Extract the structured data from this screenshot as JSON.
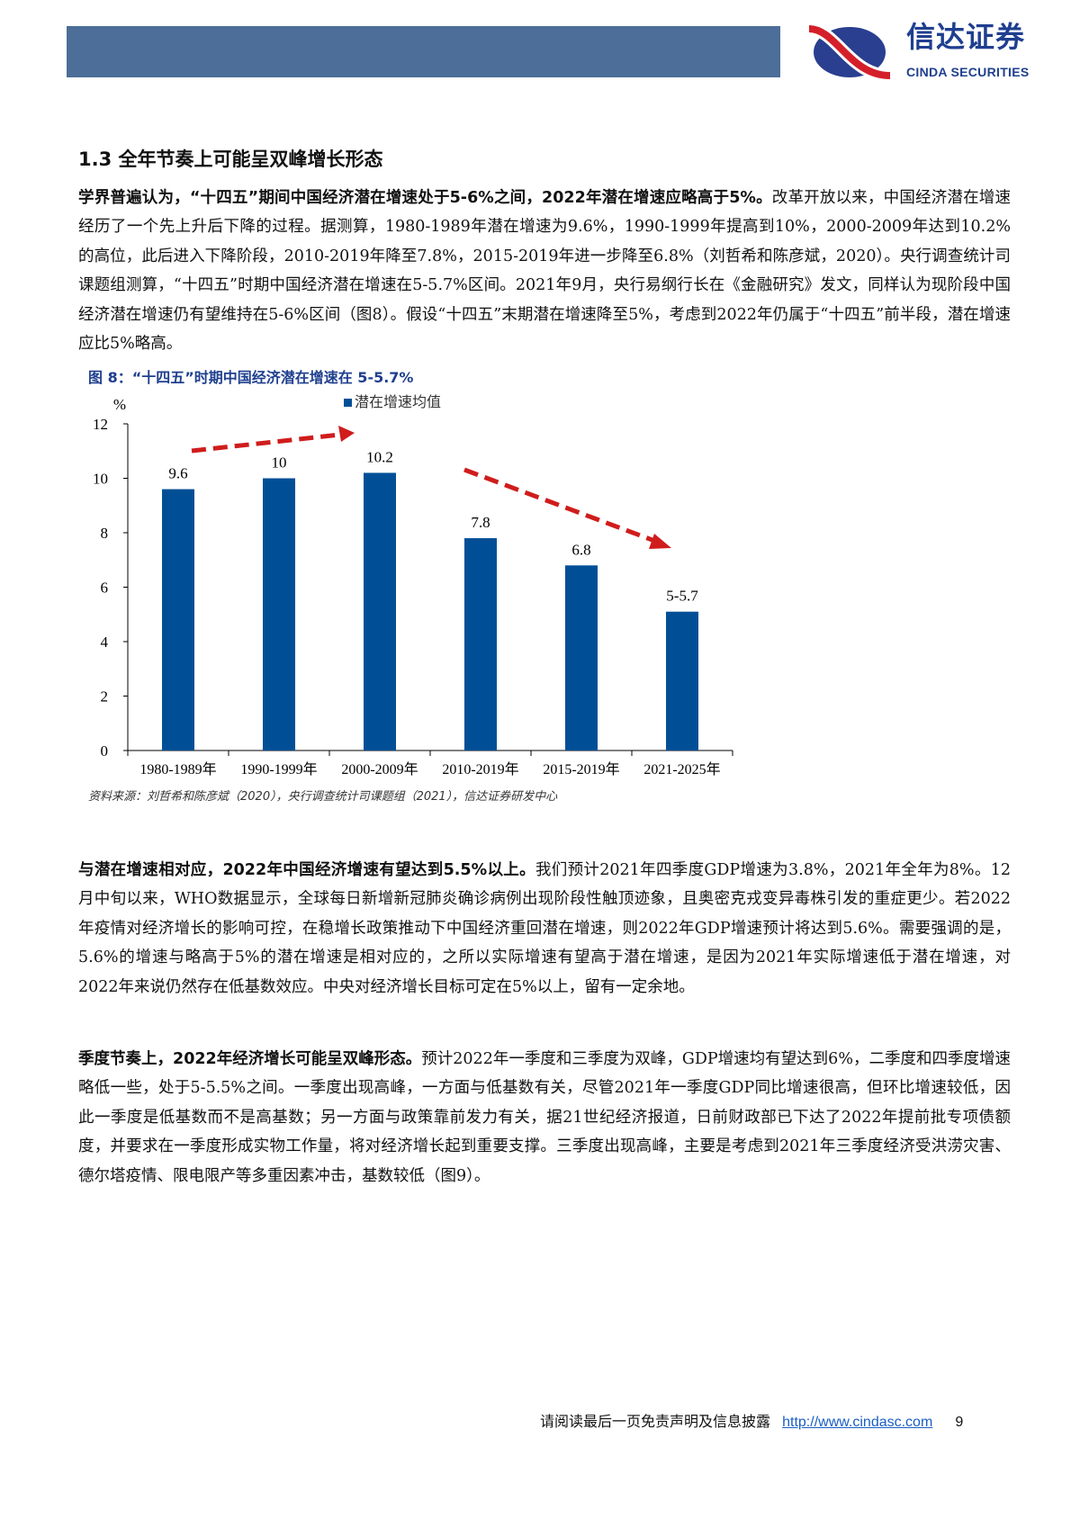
{
  "header": {
    "logo_cn": "信达证券",
    "logo_en": "CINDA SECURITIES",
    "bar_color": "#4c6e98"
  },
  "section": {
    "title": "1.3 全年节奏上可能呈双峰增长形态"
  },
  "paragraphs": [
    {
      "bold": "学界普遍认为，“十四五”期间中国经济潜在增速处于5-6%之间，2022年潜在增速应略高于5%。",
      "text": "改革开放以来，中国经济潜在增速经历了一个先上升后下降的过程。据测算，1980-1989年潜在增速为9.6%，1990-1999年提高到10%，2000-2009年达到10.2%的高位，此后进入下降阶段，2010-2019年降至7.8%，2015-2019年进一步降至6.8%（刘哲希和陈彦斌，2020）。央行调查统计司课题组测算，“十四五”时期中国经济潜在增速在5-5.7%区间。2021年9月，央行易纲行长在《金融研究》发文，同样认为现阶段中国经济潜在增速仍有望维持在5-6%区间（图8）。假设“十四五”末期潜在增速降至5%，考虑到2022年仍属于“十四五”前半段，潜在增速应比5%略高。"
    },
    {
      "bold": "与潜在增速相对应，2022年中国经济增速有望达到5.5%以上。",
      "text": "我们预计2021年四季度GDP增速为3.8%，2021年全年为8%。12月中旬以来，WHO数据显示，全球每日新增新冠肺炎确诊病例出现阶段性触顶迹象，且奥密克戎变异毒株引发的重症更少。若2022年疫情对经济增长的影响可控，在稳增长政策推动下中国经济重回潜在增速，则2022年GDP增速预计将达到5.6%。需要强调的是，5.6%的增速与略高于5%的潜在增速是相对应的，之所以实际增速有望高于潜在增速，是因为2021年实际增速低于潜在增速，对2022年来说仍然存在低基数效应。中央对经济增长目标可定在5%以上，留有一定余地。"
    },
    {
      "bold": "季度节奏上，2022年经济增长可能呈双峰形态。",
      "text": "预计2022年一季度和三季度为双峰，GDP增速均有望达到6%，二季度和四季度增速略低一些，处于5-5.5%之间。一季度出现高峰，一方面与低基数有关，尽管2021年一季度GDP同比增速很高，但环比增速较低，因此一季度是低基数而不是高基数；另一方面与政策靠前发力有关，据21世纪经济报道，日前财政部已下达了2022年提前批专项债额度，并要求在一季度形成实物工作量，将对经济增长起到重要支撑。三季度出现高峰，主要是考虑到2021年三季度经济受洪涝灾害、德尔塔疫情、限电限产等多重因素冲击，基数较低（图9）。"
    }
  ],
  "figure": {
    "caption": "图 8：“十四五”时期中国经济潜在增速在 5-5.7%",
    "source": "资料来源：刘哲希和陈彦斌（2020），央行调查统计司课题组（2021），信达证券研发中心"
  },
  "chart_data": {
    "type": "bar",
    "title": "",
    "ylabel": "%",
    "xlabel": "",
    "ylim": [
      0,
      12
    ],
    "yticks": [
      "0",
      "2",
      "4",
      "6",
      "8",
      "10",
      "12"
    ],
    "categories": [
      "1980-1989年",
      "1990-1999年",
      "2000-2009年",
      "2010-2019年",
      "2015-2019年",
      "2021-2025年"
    ],
    "series": [
      {
        "name": "潜在增速均值",
        "values": [
          9.6,
          10,
          10.2,
          7.8,
          6.8,
          5.1
        ],
        "labels": [
          "9.6",
          "10",
          "10.2",
          "7.8",
          "6.8",
          "5-5.7"
        ],
        "color": "#004f96"
      }
    ],
    "legend": "top-center",
    "grid": false,
    "annotations": [
      {
        "type": "dashed-arrow",
        "direction": "up",
        "color": "#d01c1c",
        "from_category": "1980-1989年",
        "to_category": "2000-2009年"
      },
      {
        "type": "dashed-arrow",
        "direction": "down",
        "color": "#d01c1c",
        "from_category": "2010-2019年",
        "to_category": "2021-2025年"
      }
    ]
  },
  "footer": {
    "disclaimer": "请阅读最后一页免责声明及信息披露",
    "link": "http://www.cindasc.com",
    "page": "9"
  }
}
